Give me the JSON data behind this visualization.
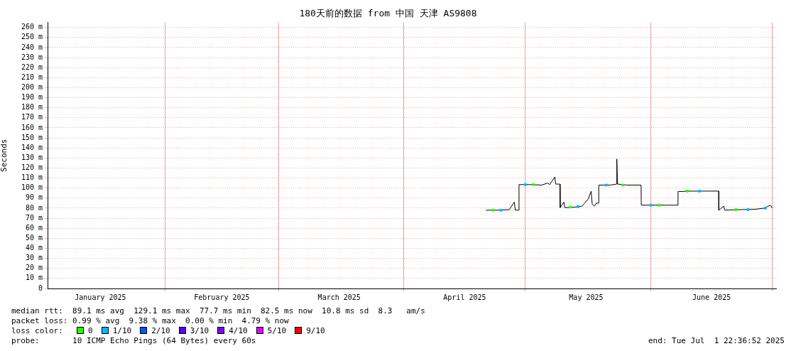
{
  "chart_data": {
    "type": "line",
    "title": "180天前的数据 from 中国 天津 AS9808",
    "ylabel": "Seconds",
    "legend_title": "loss color:",
    "legend": "bottom",
    "grid": true,
    "xlim": [
      "2025-01-02T22:36",
      "2025-07-01T22:36"
    ],
    "xticks": [
      {
        "value": "2025-01-16",
        "label": "January 2025"
      },
      {
        "value": "2025-02-01",
        "label": null
      },
      {
        "value": "2025-02-15",
        "label": "February 2025"
      },
      {
        "value": "2025-03-01",
        "label": null
      },
      {
        "value": "2025-03-16",
        "label": "March 2025"
      },
      {
        "value": "2025-04-01",
        "label": null
      },
      {
        "value": "2025-04-16",
        "label": "April 2025"
      },
      {
        "value": "2025-05-01",
        "label": null
      },
      {
        "value": "2025-05-16",
        "label": "May 2025"
      },
      {
        "value": "2025-06-01",
        "label": null
      },
      {
        "value": "2025-06-16",
        "label": "June 2025"
      },
      {
        "value": "2025-07-01",
        "label": null
      }
    ],
    "ylim": [
      0,
      265
    ],
    "yticks": [
      0,
      {
        "value": 10,
        "label": "10 m"
      },
      {
        "value": 20,
        "label": "20 m"
      },
      {
        "value": 30,
        "label": "30 m"
      },
      {
        "value": 40,
        "label": "40 m"
      },
      {
        "value": 50,
        "label": "50 m"
      },
      {
        "value": 60,
        "label": "60 m"
      },
      {
        "value": 70,
        "label": "70 m"
      },
      {
        "value": 80,
        "label": "80 m"
      },
      {
        "value": 90,
        "label": "90 m"
      },
      {
        "value": 100,
        "label": "100 m"
      },
      {
        "value": 110,
        "label": "110 m"
      },
      {
        "value": 120,
        "label": "120 m"
      },
      {
        "value": 130,
        "label": "130 m"
      },
      {
        "value": 140,
        "label": "140 m"
      },
      {
        "value": 150,
        "label": "150 m"
      },
      {
        "value": 160,
        "label": "160 m"
      },
      {
        "value": 170,
        "label": "170 m"
      },
      {
        "value": 180,
        "label": "180 m"
      },
      {
        "value": 190,
        "label": "190 m"
      },
      {
        "value": 200,
        "label": "200 m"
      },
      {
        "value": 210,
        "label": "210 m"
      },
      {
        "value": 220,
        "label": "220 m"
      },
      {
        "value": 230,
        "label": "230 m"
      },
      {
        "value": 240,
        "label": "240 m"
      },
      {
        "value": 250,
        "label": "250 m"
      },
      {
        "value": 260,
        "label": "260 m"
      }
    ],
    "series": [
      {
        "color": "#000000",
        "marker": "none",
        "x": [
          "2025-04-21T06:00",
          "2025-04-24",
          "2025-04-27",
          "2025-04-28T06:00",
          "2025-04-28T12:00",
          "2025-04-29T09:00",
          "2025-04-29T10:00",
          "2025-05-02",
          "2025-05-05",
          "2025-05-06T12:00",
          "2025-05-07",
          "2025-05-08T06:00",
          "2025-05-08T12:00",
          "2025-05-09T12:00",
          "2025-05-09T14:00",
          "2025-05-10T12:00",
          "2025-05-10T18:00",
          "2025-05-13",
          "2025-05-15",
          "2025-05-16T12:00",
          "2025-05-17T06:00",
          "2025-05-17T12:00",
          "2025-05-18",
          "2025-05-18T12:00",
          "2025-05-19T02:00",
          "2025-05-19T03:00",
          "2025-05-22",
          "2025-05-23T12:00",
          "2025-05-23T14:00",
          "2025-05-23T18:00",
          "2025-05-26",
          "2025-05-29T14:00",
          "2025-05-29T15:00",
          "2025-06-02",
          "2025-06-05",
          "2025-06-07T16:00",
          "2025-06-07T17:00",
          "2025-06-11",
          "2025-06-14",
          "2025-06-17T18:00",
          "2025-06-17T19:00",
          "2025-06-19",
          "2025-06-19T06:00",
          "2025-06-23",
          "2025-06-27",
          "2025-06-29",
          "2025-06-30T12:00",
          "2025-07-01"
        ],
        "values": [
          78,
          78,
          78.5,
          86,
          78,
          78,
          103.5,
          103.5,
          103,
          105,
          103.5,
          111,
          104,
          104,
          80.5,
          86,
          80.5,
          81,
          82,
          89,
          97,
          84,
          82,
          85,
          85,
          103,
          103,
          104,
          129,
          104,
          103,
          103,
          83,
          83,
          83,
          83,
          96.5,
          97,
          97,
          97,
          78,
          82,
          78,
          78.5,
          79,
          80,
          83,
          80
        ]
      },
      {
        "type": "scatter",
        "name": "0",
        "color": "#26ff00",
        "marker": "square",
        "x": [
          "2025-04-23",
          "2025-05-03",
          "2025-05-12",
          "2025-05-25",
          "2025-06-03",
          "2025-06-10",
          "2025-06-22"
        ],
        "values": [
          78,
          103.5,
          81,
          103,
          83,
          97,
          78.5
        ]
      },
      {
        "type": "scatter",
        "name": "1/10",
        "color": "#00b8ff",
        "marker": "square",
        "x": [
          "2025-04-25",
          "2025-05-01",
          "2025-05-14",
          "2025-05-21",
          "2025-06-01",
          "2025-06-13",
          "2025-06-25",
          "2025-06-29T06:00"
        ],
        "values": [
          78,
          103.5,
          81.5,
          103,
          83,
          97,
          78.5,
          80
        ]
      },
      {
        "type": "scatter",
        "name": "2/10",
        "color": "#0059ff",
        "marker": "square"
      },
      {
        "type": "scatter",
        "name": "3/10",
        "color": "#5e00ff",
        "marker": "square"
      },
      {
        "type": "scatter",
        "name": "4/10",
        "color": "#7e00ff",
        "marker": "square"
      },
      {
        "type": "scatter",
        "name": "5/10",
        "color": "#dd00ff",
        "marker": "square"
      },
      {
        "type": "scatter",
        "name": "9/10",
        "color": "#ff0000",
        "marker": "square"
      }
    ],
    "annotations": [
      "median rtt:  89.1 ms avg  129.1 ms max  77.7 ms min  82.5 ms now  10.8 ms sd  8.3   am/s",
      "packet loss: 0.99 % avg  9.38 % max  0.00 % min  4.79 % now",
      "probe:       10 ICMP Echo Pings (64 Bytes) every 60s",
      "end: Tue Jul  1 22:36:52 2025"
    ]
  }
}
